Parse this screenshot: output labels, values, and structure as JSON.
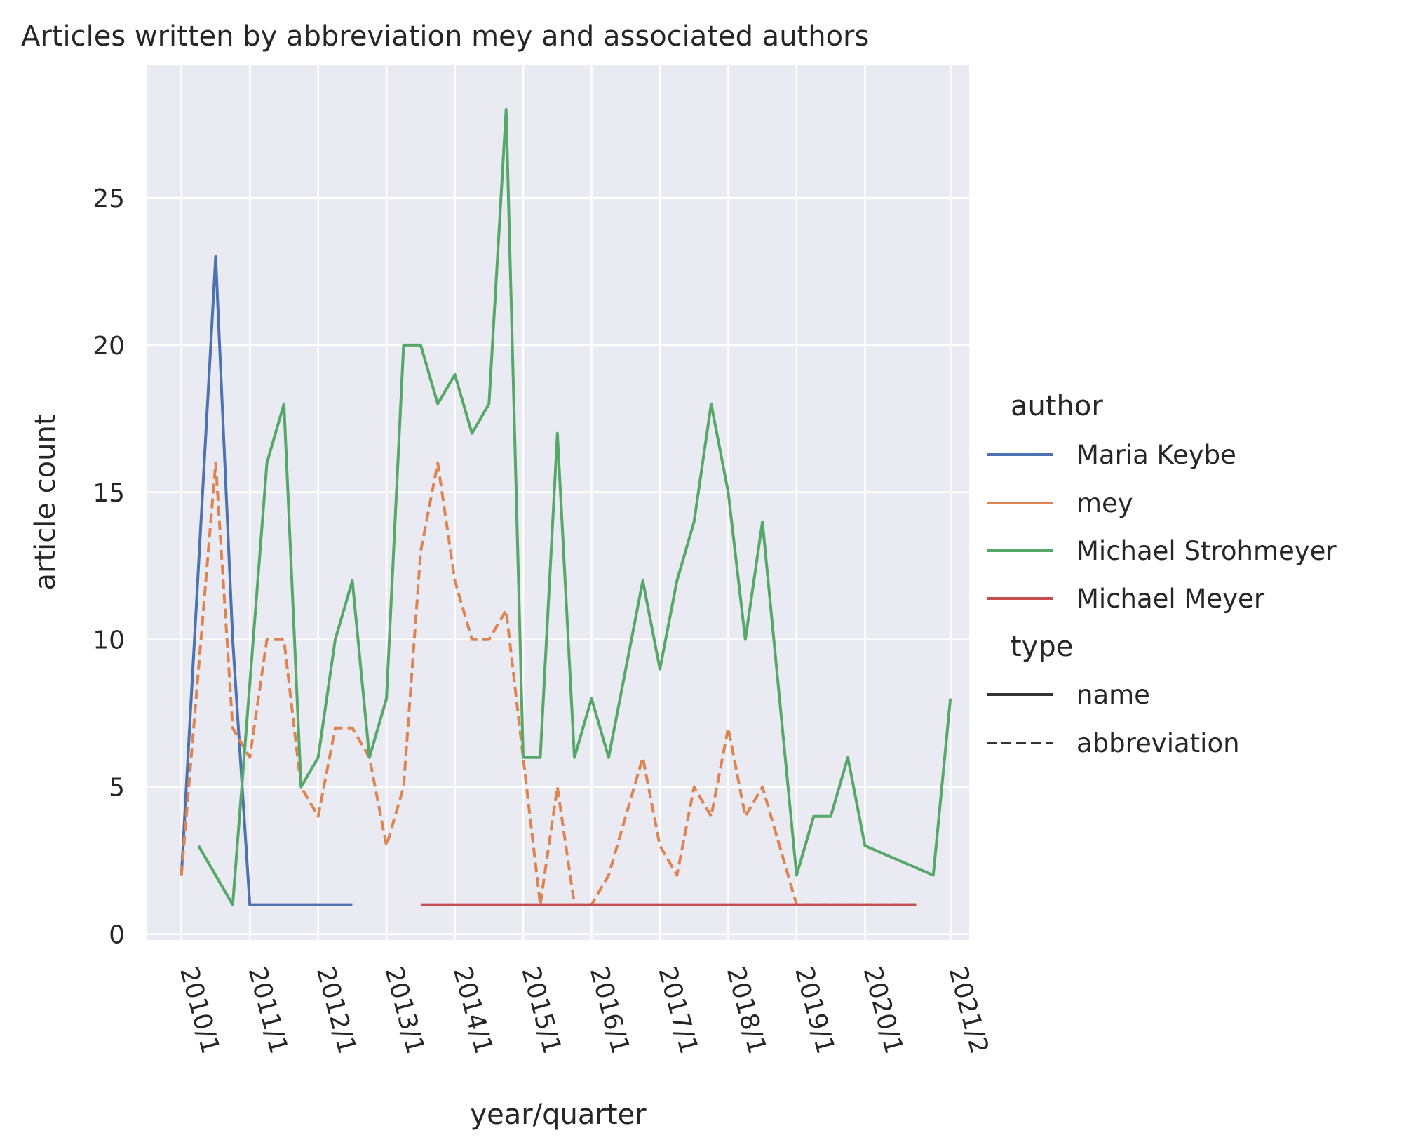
{
  "chart_data": {
    "type": "line",
    "title": "Articles written by abbreviation mey and associated authors",
    "xlabel": "year/quarter",
    "ylabel": "article count",
    "ylim": [
      -0.2,
      29.5
    ],
    "yticks": [
      0,
      5,
      10,
      15,
      20,
      25
    ],
    "x_tick_labels": [
      "2010/1",
      "2011/1",
      "2012/1",
      "2013/1",
      "2014/1",
      "2015/1",
      "2016/1",
      "2017/1",
      "2018/1",
      "2019/1",
      "2020/1",
      "2021/2"
    ],
    "grid": true,
    "legend": {
      "placement": "right",
      "author_title": "author",
      "type_title": "type",
      "type_entries": [
        {
          "label": "name",
          "dash": "solid"
        },
        {
          "label": "abbreviation",
          "dash": "dashed"
        }
      ]
    },
    "series": [
      {
        "name": "Maria Keybe",
        "type": "name",
        "color": "#4c72b0",
        "points": [
          [
            "2010/1",
            2
          ],
          [
            "2010/3",
            23
          ],
          [
            "2010/4",
            10
          ],
          [
            "2011/1",
            1
          ],
          [
            "2011/2",
            1
          ],
          [
            "2012/3",
            1
          ]
        ]
      },
      {
        "name": "mey",
        "type": "abbreviation",
        "color": "#dd8452",
        "points": [
          [
            "2010/1",
            2
          ],
          [
            "2010/3",
            16
          ],
          [
            "2010/4",
            7
          ],
          [
            "2011/1",
            6
          ],
          [
            "2011/2",
            10
          ],
          [
            "2011/3",
            10
          ],
          [
            "2011/4",
            5
          ],
          [
            "2012/1",
            4
          ],
          [
            "2012/2",
            7
          ],
          [
            "2012/3",
            7
          ],
          [
            "2012/4",
            6
          ],
          [
            "2013/1",
            3
          ],
          [
            "2013/2",
            5
          ],
          [
            "2013/3",
            13
          ],
          [
            "2013/4",
            16
          ],
          [
            "2014/1",
            12
          ],
          [
            "2014/2",
            10
          ],
          [
            "2014/3",
            10
          ],
          [
            "2014/4",
            11
          ],
          [
            "2015/1",
            6
          ],
          [
            "2015/2",
            1
          ],
          [
            "2015/3",
            5
          ],
          [
            "2015/4",
            1
          ],
          [
            "2016/1",
            1
          ],
          [
            "2016/2",
            2
          ],
          [
            "2016/4",
            6
          ],
          [
            "2017/1",
            3
          ],
          [
            "2017/2",
            2
          ],
          [
            "2017/3",
            5
          ],
          [
            "2017/4",
            4
          ],
          [
            "2018/1",
            7
          ],
          [
            "2018/2",
            4
          ],
          [
            "2018/3",
            5
          ],
          [
            "2019/1",
            1
          ],
          [
            "2019/2",
            1
          ],
          [
            "2019/4",
            1
          ],
          [
            "2020/1",
            1
          ],
          [
            "2020/4",
            1
          ]
        ]
      },
      {
        "name": "Michael Strohmeyer",
        "type": "name",
        "color": "#55a868",
        "points": [
          [
            "2010/2",
            3
          ],
          [
            "2010/4",
            1
          ],
          [
            "2011/2",
            16
          ],
          [
            "2011/3",
            18
          ],
          [
            "2011/4",
            5
          ],
          [
            "2012/1",
            6
          ],
          [
            "2012/2",
            10
          ],
          [
            "2012/3",
            12
          ],
          [
            "2012/4",
            6
          ],
          [
            "2013/1",
            8
          ],
          [
            "2013/2",
            20
          ],
          [
            "2013/3",
            20
          ],
          [
            "2013/4",
            18
          ],
          [
            "2014/1",
            19
          ],
          [
            "2014/2",
            17
          ],
          [
            "2014/3",
            18
          ],
          [
            "2014/4",
            28
          ],
          [
            "2015/1",
            6
          ],
          [
            "2015/2",
            6
          ],
          [
            "2015/3",
            17
          ],
          [
            "2015/4",
            6
          ],
          [
            "2016/1",
            8
          ],
          [
            "2016/2",
            6
          ],
          [
            "2016/4",
            12
          ],
          [
            "2017/1",
            9
          ],
          [
            "2017/2",
            12
          ],
          [
            "2017/3",
            14
          ],
          [
            "2017/4",
            18
          ],
          [
            "2018/1",
            15
          ],
          [
            "2018/2",
            10
          ],
          [
            "2018/3",
            14
          ],
          [
            "2019/1",
            2
          ],
          [
            "2019/2",
            4
          ],
          [
            "2019/3",
            4
          ],
          [
            "2019/4",
            6
          ],
          [
            "2020/1",
            3
          ],
          [
            "2021/1",
            2
          ],
          [
            "2021/2",
            8
          ]
        ]
      },
      {
        "name": "Michael Meyer",
        "type": "name",
        "color": "#c44e52",
        "points": [
          [
            "2013/3",
            1
          ],
          [
            "2020/4",
            1
          ]
        ]
      }
    ]
  }
}
